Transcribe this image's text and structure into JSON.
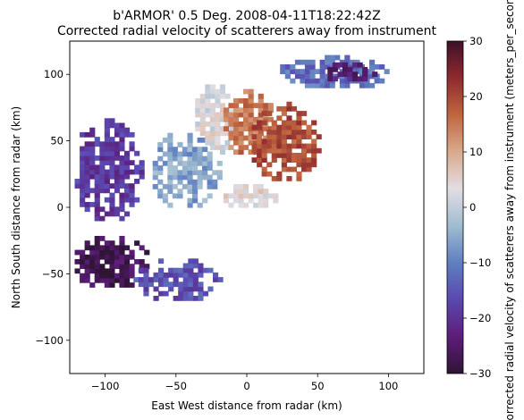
{
  "chart_data": {
    "type": "heatmap",
    "title": "b'ARMOR' 0.5 Deg. 2008-04-11T18:22:42Z",
    "subtitle": "Corrected radial velocity of scatterers away from instrument",
    "xlabel": "East West distance from radar (km)",
    "ylabel": "North South distance from radar (km)",
    "xlim": [
      -125,
      125
    ],
    "ylim": [
      -125,
      125
    ],
    "xticks": [
      -100,
      -50,
      0,
      50,
      100
    ],
    "yticks": [
      100,
      50,
      0,
      -50,
      -100
    ],
    "colorbar": {
      "label": "Corrected radial velocity of scatterers away from instrument (meters_per_second)",
      "range": [
        -30,
        30
      ],
      "ticks": [
        30,
        20,
        10,
        0,
        -10,
        -20,
        -30
      ],
      "colormap": "twilight_shifted",
      "colors": [
        "#2f1436",
        "#5d1d79",
        "#5a48b0",
        "#5f7fc0",
        "#9fbcd0",
        "#e3dde3",
        "#d9aa8c",
        "#c0663f",
        "#8f2a2f",
        "#3f1028"
      ]
    },
    "regions": [
      {
        "x_range": [
          -125,
          -70
        ],
        "y_range": [
          -60,
          -20
        ],
        "velocity": -27
      },
      {
        "x_range": [
          -125,
          -75
        ],
        "y_range": [
          -10,
          70
        ],
        "velocity": -19
      },
      {
        "x_range": [
          -70,
          -20
        ],
        "y_range": [
          0,
          60
        ],
        "velocity": -6
      },
      {
        "x_range": [
          -40,
          -10
        ],
        "y_range": [
          40,
          95
        ],
        "velocity": 3
      },
      {
        "x_range": [
          -20,
          20
        ],
        "y_range": [
          40,
          90
        ],
        "velocity": 15
      },
      {
        "x_range": [
          0,
          50
        ],
        "y_range": [
          20,
          80
        ],
        "velocity": 19
      },
      {
        "x_range": [
          20,
          100
        ],
        "y_range": [
          90,
          115
        ],
        "velocity": -12
      },
      {
        "x_range": [
          50,
          90
        ],
        "y_range": [
          95,
          110
        ],
        "velocity": -24
      },
      {
        "x_range": [
          -80,
          -20
        ],
        "y_range": [
          -70,
          -35
        ],
        "velocity": -16
      },
      {
        "x_range": [
          -20,
          20
        ],
        "y_range": [
          0,
          20
        ],
        "velocity": 4
      }
    ]
  }
}
